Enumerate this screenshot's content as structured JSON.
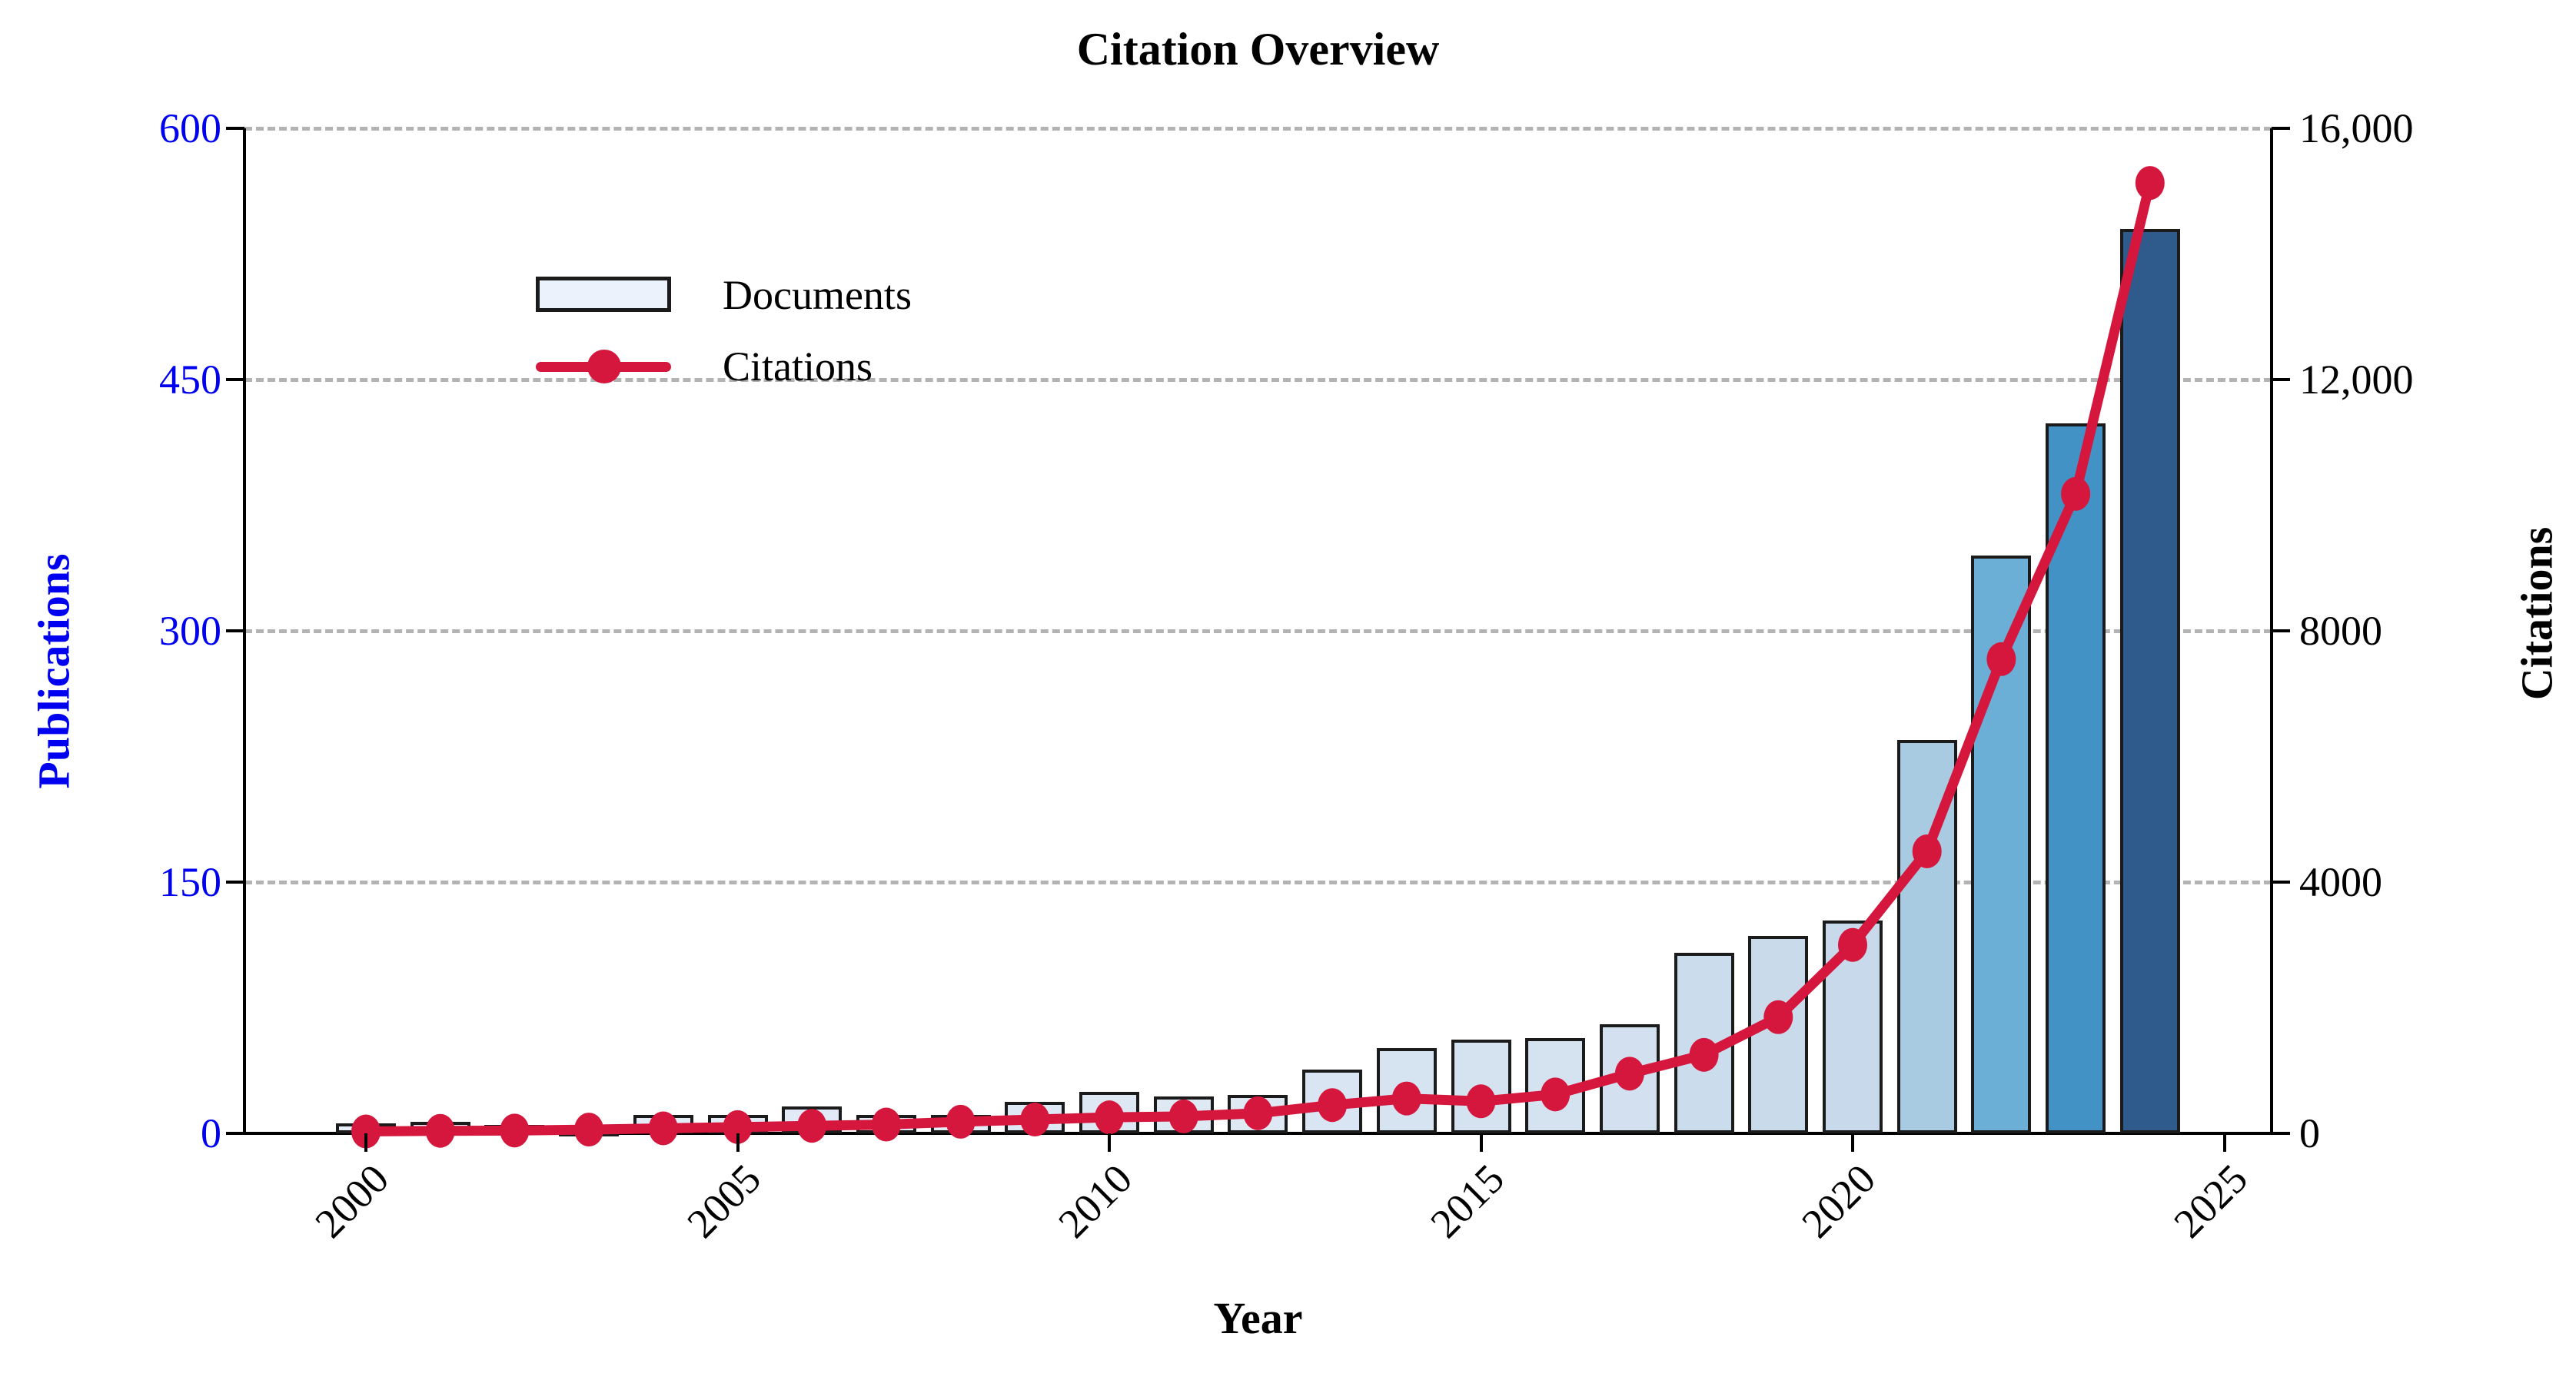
{
  "title": "Citation Overview",
  "legend": {
    "documents_label": "Documents",
    "citations_label": "Citations"
  },
  "axes": {
    "x_label": "Year",
    "left_label": "Publications",
    "right_label": "Citations",
    "left_ticks": [
      {
        "value": 0,
        "label": "0"
      },
      {
        "value": 150,
        "label": "150"
      },
      {
        "value": 300,
        "label": "300"
      },
      {
        "value": 450,
        "label": "450"
      },
      {
        "value": 600,
        "label": "600"
      }
    ],
    "right_ticks": [
      {
        "value": 0,
        "label": "0"
      },
      {
        "value": 4000,
        "label": "4000"
      },
      {
        "value": 8000,
        "label": "8000"
      },
      {
        "value": 12000,
        "label": "12,000"
      },
      {
        "value": 16000,
        "label": "16,000"
      }
    ],
    "x_ticks": [
      {
        "value": 2000,
        "label": "2000"
      },
      {
        "value": 2005,
        "label": "2005"
      },
      {
        "value": 2010,
        "label": "2010"
      },
      {
        "value": 2015,
        "label": "2015"
      },
      {
        "value": 2020,
        "label": "2020"
      },
      {
        "value": 2025,
        "label": "2025"
      }
    ],
    "left_max": 600,
    "right_max": 16000
  },
  "colors": {
    "accent_red": "#d5173d",
    "axis_blue": "#0000f0",
    "grid_gray": "#b3b3b3",
    "bar_edge": "#1b1b1b",
    "legend_swatch_fill": "#ecf2fb"
  },
  "chart_data": {
    "type": "combo-bar-line",
    "title": "Citation Overview",
    "xlabel": "Year",
    "ylabel_left": "Publications",
    "ylabel_right": "Citations",
    "ylim_left": [
      0,
      600
    ],
    "ylim_right": [
      0,
      16000
    ],
    "xlim": [
      1998.4,
      2025.6
    ],
    "grid": "horizontal-dashed",
    "legend_position": "upper-left",
    "x": [
      2000,
      2001,
      2002,
      2003,
      2004,
      2005,
      2006,
      2007,
      2008,
      2009,
      2010,
      2011,
      2012,
      2013,
      2014,
      2015,
      2016,
      2017,
      2018,
      2019,
      2020,
      2021,
      2022,
      2023,
      2024
    ],
    "series": [
      {
        "name": "Documents",
        "type": "bar",
        "axis": "left",
        "values": [
          6,
          7,
          5,
          2,
          11,
          11,
          16,
          11,
          11,
          19,
          25,
          22,
          23,
          38,
          51,
          56,
          57,
          65,
          108,
          118,
          127,
          235,
          345,
          424,
          540
        ],
        "bar_colors": [
          "#e7effa",
          "#e7effa",
          "#e8f0fa",
          "#e8f0fa",
          "#e3ecf7",
          "#e3ecf7",
          "#e1eaf6",
          "#e3ecf7",
          "#e3ecf7",
          "#dfe9f5",
          "#dde8f4",
          "#dee9f4",
          "#dee9f4",
          "#d9e5f2",
          "#d6e3f1",
          "#d5e2f0",
          "#d5e2f0",
          "#d2e0ef",
          "#cbdcec",
          "#c9daeb",
          "#c7d9ea",
          "#a8cbe2",
          "#6baed6",
          "#4292c6",
          "#2e5b8c"
        ]
      },
      {
        "name": "Citations",
        "type": "line",
        "axis": "right",
        "color": "#d5173d",
        "values": [
          30,
          40,
          45,
          60,
          80,
          100,
          120,
          140,
          185,
          220,
          255,
          270,
          320,
          450,
          555,
          510,
          620,
          950,
          1250,
          1850,
          3000,
          4490,
          7550,
          10180,
          15130
        ]
      }
    ]
  }
}
